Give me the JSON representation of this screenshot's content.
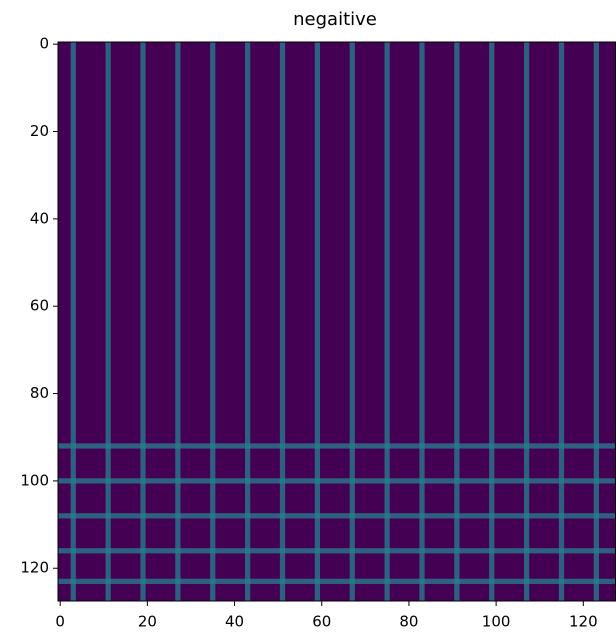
{
  "chart_data": {
    "type": "heatmap",
    "title": "negaitive",
    "xlim": [
      -0.5,
      127.5
    ],
    "ylim": [
      127.5,
      -0.5
    ],
    "xticks": [
      0,
      20,
      40,
      60,
      80,
      100,
      120
    ],
    "yticks": [
      0,
      20,
      40,
      60,
      80,
      100,
      120
    ],
    "background_color": "#440154",
    "streak_color": "#26828e",
    "vertical_streaks": [
      3,
      11,
      19,
      27,
      35,
      43,
      51,
      59,
      67,
      75,
      83,
      91,
      99,
      107,
      115,
      123
    ],
    "horizontal_streaks": [
      92,
      100,
      108,
      116,
      123
    ]
  }
}
